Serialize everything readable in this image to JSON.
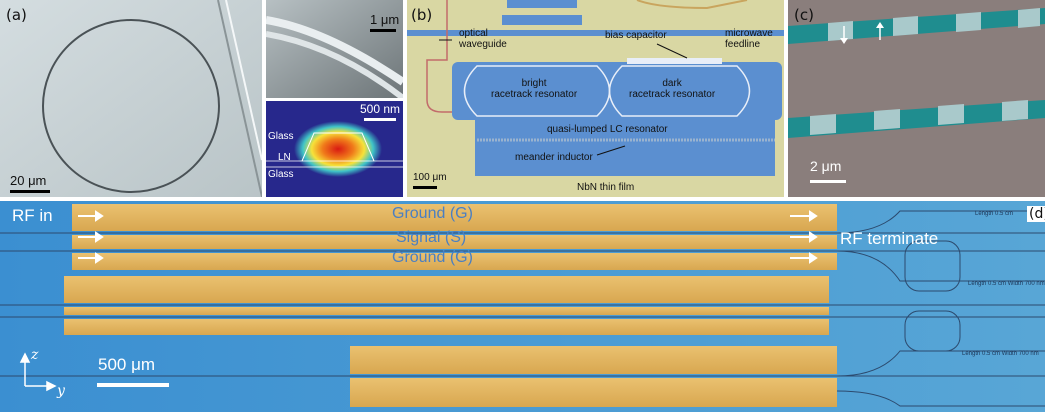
{
  "panel_a": {
    "label": "(a)",
    "scale_main": "20 μm",
    "scale_inset_top": "1 μm",
    "scale_inset_bottom": "500 nm",
    "layer_glass_top": "Glass",
    "layer_ln": "LN",
    "layer_glass_bottom": "Glass"
  },
  "panel_b": {
    "label": "(b)",
    "optical_waveguide": "optical\nwaveguide",
    "bias_capacitor": "bias capacitor",
    "microwave_feedline": "microwave\nfeedline",
    "bright_resonator": "bright\nracetrack resonator",
    "dark_resonator": "dark\nracetrack resonator",
    "lc_resonator": "quasi-lumped LC resonator",
    "meander_inductor": "meander inductor",
    "nbn_film": "NbN thin film",
    "scale": "100 μm"
  },
  "panel_c": {
    "label": "(c)",
    "scale": "2 μm"
  },
  "panel_d": {
    "label": "(d)",
    "rf_in": "RF in",
    "ground_top": "Ground (G)",
    "signal": "Signal (S)",
    "ground_bottom": "Ground (G)",
    "rf_terminate": "RF terminate",
    "scale": "500 μm",
    "axis_z": "z",
    "axis_y": "y",
    "note_1": "Length 0.5 cm",
    "note_2": "Length 0.5 cm Width 700 nm",
    "note_3": "Length 0.5 cm Width 700 nm"
  },
  "colors": {
    "sem_gray": "#c9d3d6",
    "microscope_blue": "#3f8fcf",
    "gold": "#e3b55a",
    "teal": "#1d8a8d",
    "optical_bg": "#d8d6a0",
    "optical_blue": "#4f88cf"
  }
}
